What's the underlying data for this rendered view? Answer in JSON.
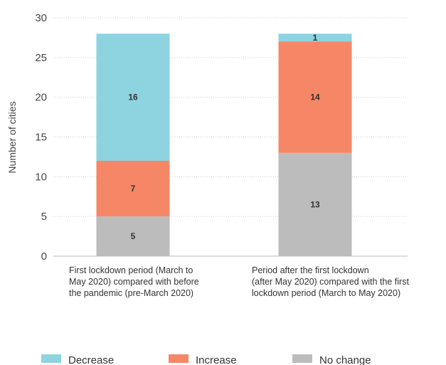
{
  "colors": {
    "decrease": "#8dd3e0",
    "increase": "#f58766",
    "no_change": "#bcbcbd"
  },
  "chart_data": {
    "type": "bar",
    "stacked": true,
    "ylabel": "Number of cities",
    "xlabel": "",
    "ylim": [
      0,
      30
    ],
    "yticks": [
      0,
      5,
      10,
      15,
      20,
      25,
      30
    ],
    "grid": true,
    "legend_position": "bottom",
    "categories": [
      [
        "First lockdown period (March to",
        "May 2020) compared with before",
        "the pandemic (pre-March 2020)"
      ],
      [
        "Period after the first lockdown",
        "(after May 2020) compared with the first",
        "lockdown period (March to May 2020)"
      ]
    ],
    "series": [
      {
        "name": "No change",
        "color_key": "no_change",
        "values": [
          5,
          13
        ]
      },
      {
        "name": "Increase",
        "color_key": "increase",
        "values": [
          7,
          14
        ]
      },
      {
        "name": "Decrease",
        "color_key": "decrease",
        "values": [
          16,
          1
        ]
      }
    ],
    "legend_order": [
      "Decrease",
      "Increase",
      "No change"
    ]
  }
}
